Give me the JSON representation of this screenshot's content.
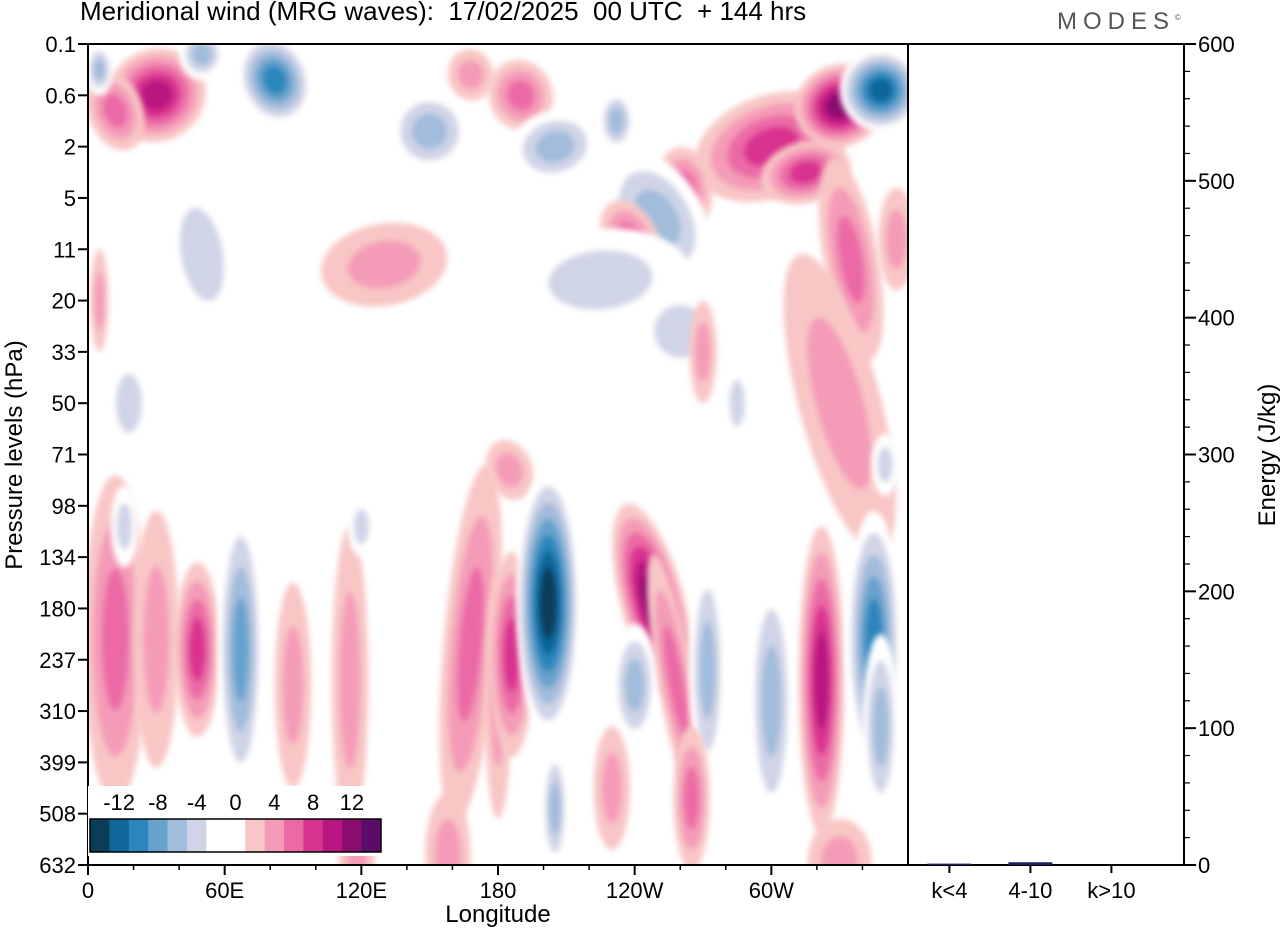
{
  "header": {
    "title": "Meridional wind (MRG waves):  17/02/2025  00 UTC  + 144 hrs",
    "brand": "MODES",
    "brand_mark": "©"
  },
  "chart_data": [
    {
      "type": "heatmap",
      "title": "Meridional wind (MRG waves):  17/02/2025  00 UTC  + 144 hrs",
      "xlabel": "Longitude",
      "ylabel": "Pressure levels (hPa)",
      "x_ticks": [
        "0",
        "60E",
        "120E",
        "180",
        "120W",
        "60W"
      ],
      "x_tick_degrees": [
        0,
        60,
        120,
        180,
        240,
        300
      ],
      "x_range_degrees": [
        0,
        360
      ],
      "y_ticks": [
        "0.1",
        "0.6",
        "2",
        "5",
        "11",
        "20",
        "33",
        "50",
        "71",
        "98",
        "134",
        "180",
        "237",
        "310",
        "399",
        "508",
        "632"
      ],
      "colorbar": {
        "labels": [
          "-12",
          "-8",
          "-4",
          "0",
          "4",
          "8",
          "12"
        ],
        "levels": [
          -12,
          -8,
          -4,
          0,
          4,
          8,
          12
        ],
        "colors": [
          "#0a3d5a",
          "#10669a",
          "#2b86bd",
          "#66a2cc",
          "#a2bcdb",
          "#d0d4e7",
          "#ffffff",
          "#ffffff",
          "#f8c6c4",
          "#f49bb8",
          "#eb6aa6",
          "#d9338f",
          "#b81781",
          "#8b0c6e",
          "#5a0c6b"
        ]
      },
      "features": [
        {
          "lon": 202,
          "level": "134",
          "value": -14
        },
        {
          "lon": 248,
          "level": "134",
          "value": 12
        },
        {
          "lon": 323,
          "level": "237",
          "value": 10
        },
        {
          "lon": 345,
          "level": "180",
          "value": -10
        },
        {
          "lon": 67,
          "level": "237",
          "value": -8
        },
        {
          "lon": 185,
          "level": "237",
          "value": 7
        },
        {
          "lon": 47,
          "level": "237",
          "value": 7
        },
        {
          "lon": 330,
          "level": "0.6",
          "value": 12
        },
        {
          "lon": 350,
          "level": "0.6",
          "value": -12
        },
        {
          "lon": 27,
          "level": "0.6",
          "value": 10
        },
        {
          "lon": 80,
          "level": "0.6",
          "value": -10
        }
      ]
    },
    {
      "type": "bar",
      "categories": [
        "k<4",
        "4-10",
        "k>10"
      ],
      "values": [
        1,
        2,
        0
      ],
      "ylabel": "Energy (J/kg)",
      "ylim": [
        0,
        600
      ],
      "y_ticks": [
        "0",
        "100",
        "200",
        "300",
        "400",
        "500",
        "600"
      ],
      "bar_color": "#1a1f5c"
    }
  ]
}
